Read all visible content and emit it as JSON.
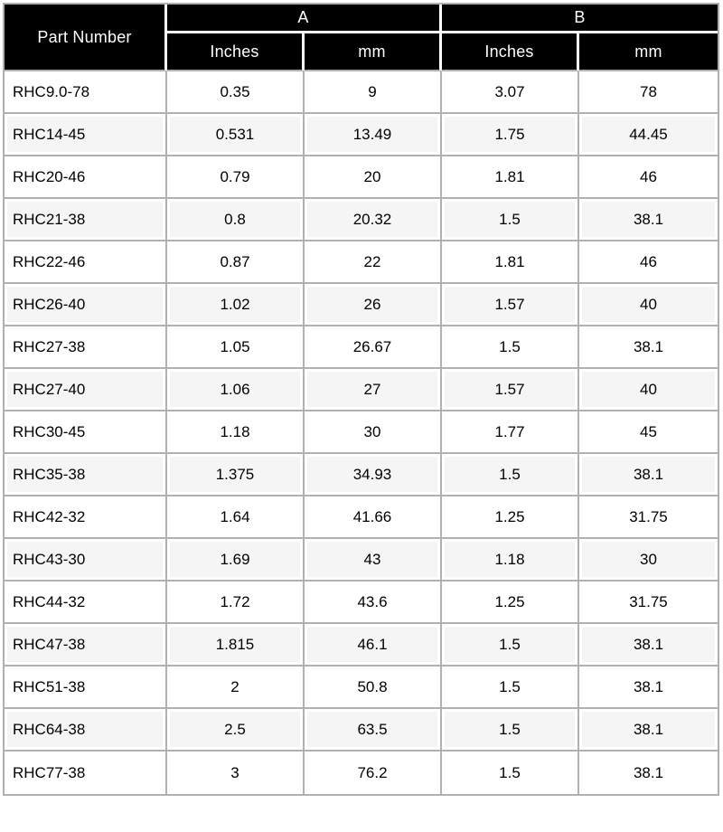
{
  "table": {
    "header": {
      "part_number": "Part Number",
      "group_a": "A",
      "group_b": "B"
    },
    "subheaders": [
      "Inches",
      "mm",
      "Inches",
      "mm"
    ],
    "rows": [
      [
        "RHC9.0-78",
        "0.35",
        "9",
        "3.07",
        "78"
      ],
      [
        "RHC14-45",
        "0.531",
        "13.49",
        "1.75",
        "44.45"
      ],
      [
        "RHC20-46",
        "0.79",
        "20",
        "1.81",
        "46"
      ],
      [
        "RHC21-38",
        "0.8",
        "20.32",
        "1.5",
        "38.1"
      ],
      [
        "RHC22-46",
        "0.87",
        "22",
        "1.81",
        "46"
      ],
      [
        "RHC26-40",
        "1.02",
        "26",
        "1.57",
        "40"
      ],
      [
        "RHC27-38",
        "1.05",
        "26.67",
        "1.5",
        "38.1"
      ],
      [
        "RHC27-40",
        "1.06",
        "27",
        "1.57",
        "40"
      ],
      [
        "RHC30-45",
        "1.18",
        "30",
        "1.77",
        "45"
      ],
      [
        "RHC35-38",
        "1.375",
        "34.93",
        "1.5",
        "38.1"
      ],
      [
        "RHC42-32",
        "1.64",
        "41.66",
        "1.25",
        "31.75"
      ],
      [
        "RHC43-30",
        "1.69",
        "43",
        "1.18",
        "30"
      ],
      [
        "RHC44-32",
        "1.72",
        "43.6",
        "1.25",
        "31.75"
      ],
      [
        "RHC47-38",
        "1.815",
        "46.1",
        "1.5",
        "38.1"
      ],
      [
        "RHC51-38",
        "2",
        "50.8",
        "1.5",
        "38.1"
      ],
      [
        "RHC64-38",
        "2.5",
        "63.5",
        "1.5",
        "38.1"
      ],
      [
        "RHC77-38",
        "3",
        "76.2",
        "1.5",
        "38.1"
      ]
    ]
  },
  "colors": {
    "header_bg": "#000000",
    "header_text": "#ffffff",
    "header_divider": "#ffffff",
    "grid_border": "#b0b0b0",
    "row_even_bg": "#f5f5f5",
    "row_odd_bg": "#ffffff",
    "body_text": "#000000"
  }
}
